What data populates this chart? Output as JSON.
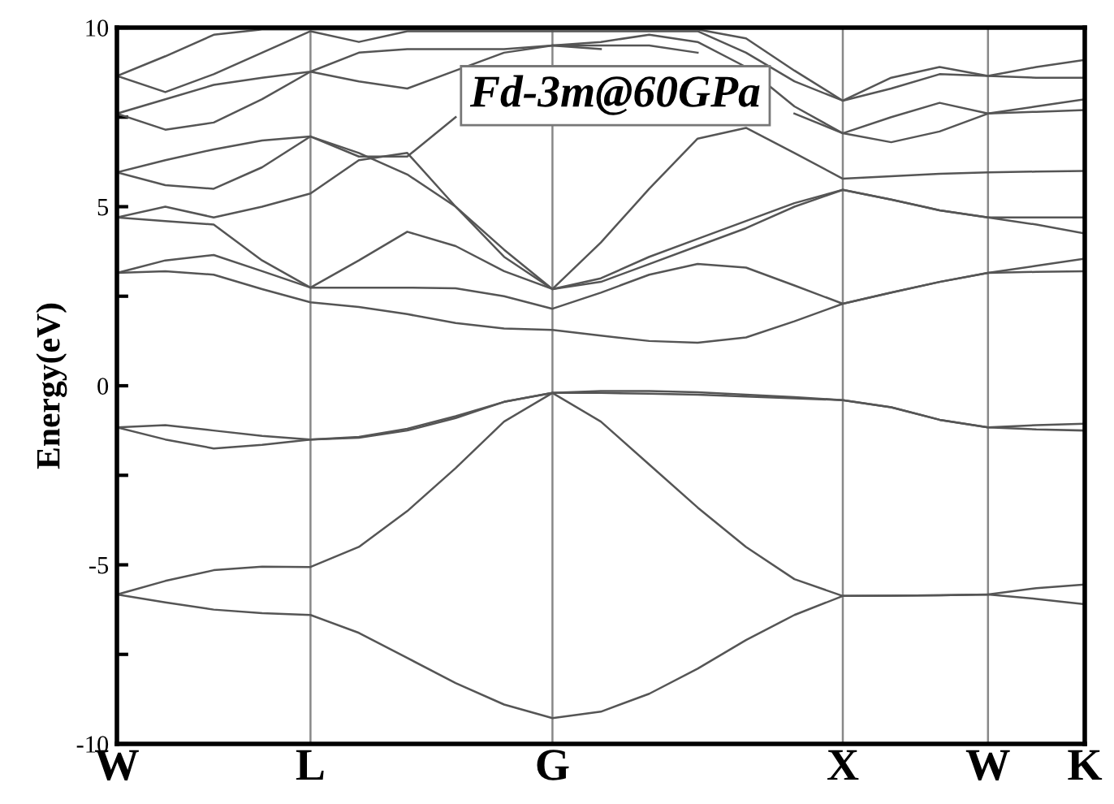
{
  "chart_data": {
    "type": "line",
    "ylabel": "Energy(eV)",
    "annotations": [
      "Fd-3m@60GPa"
    ],
    "categories": [
      "W",
      null,
      null,
      null,
      "L",
      null,
      null,
      null,
      null,
      "G",
      null,
      null,
      null,
      null,
      null,
      "X",
      null,
      null,
      "W",
      null,
      "K"
    ],
    "ylim": [
      -10,
      10
    ],
    "yticks": [
      -10,
      {
        "value": -7.5,
        "label": null
      },
      -5,
      {
        "value": -2.5,
        "label": null
      },
      0,
      {
        "value": 2.5,
        "label": null
      },
      5,
      {
        "value": 7.5,
        "label": null
      },
      10
    ],
    "grid": "x",
    "marker": "none",
    "line_style": "solid",
    "series": [
      {
        "color": "#555555",
        "values": [
          -5.83,
          -6.05,
          -6.25,
          -6.35,
          -6.4,
          -6.9,
          -7.6,
          -8.3,
          -8.9,
          -9.28,
          -9.1,
          -8.6,
          -7.9,
          -7.1,
          -6.4,
          -5.87,
          -5.86,
          -5.85,
          -5.83,
          -5.95,
          -6.1
        ]
      },
      {
        "color": "#555555",
        "values": [
          -5.83,
          -5.45,
          -5.15,
          -5.05,
          -5.06,
          -4.5,
          -3.5,
          -2.3,
          -1.0,
          -0.2,
          -1.0,
          -2.2,
          -3.4,
          -4.5,
          -5.4,
          -5.87,
          -5.86,
          -5.85,
          -5.83,
          -5.65,
          -5.55
        ]
      },
      {
        "color": "#555555",
        "values": [
          -1.16,
          -1.5,
          -1.75,
          -1.65,
          -1.5,
          -1.45,
          -1.25,
          -0.9,
          -0.45,
          -0.2,
          -0.2,
          -0.22,
          -0.25,
          -0.3,
          -0.35,
          -0.4,
          -0.6,
          -0.95,
          -1.16,
          -1.22,
          -1.25
        ]
      },
      {
        "color": "#555555",
        "values": [
          -1.16,
          -1.1,
          -1.25,
          -1.4,
          -1.5,
          -1.43,
          -1.2,
          -0.85,
          -0.45,
          -0.2,
          -0.15,
          -0.15,
          -0.18,
          -0.25,
          -0.32,
          -0.4,
          -0.6,
          -0.95,
          -1.16,
          -1.1,
          -1.06
        ]
      },
      {
        "color": "#555555",
        "values": [
          3.15,
          3.2,
          3.1,
          2.7,
          2.33,
          2.2,
          2.0,
          1.75,
          1.6,
          1.56,
          1.4,
          1.25,
          1.2,
          1.35,
          1.8,
          2.29,
          2.6,
          2.9,
          3.15,
          3.18,
          3.2
        ]
      },
      {
        "color": "#555555",
        "values": [
          3.15,
          3.5,
          3.65,
          3.2,
          2.74,
          2.74,
          2.74,
          2.72,
          2.5,
          2.15,
          2.6,
          3.1,
          3.4,
          3.3,
          2.8,
          2.29,
          2.6,
          2.9,
          3.15,
          3.35,
          3.55
        ]
      },
      {
        "color": "#555555",
        "values": [
          4.7,
          4.6,
          4.5,
          3.5,
          2.74,
          3.5,
          4.3,
          3.9,
          3.2,
          2.7,
          2.9,
          3.4,
          3.9,
          4.4,
          5.0,
          5.47,
          5.2,
          4.9,
          4.7,
          4.5,
          4.25
        ]
      },
      {
        "color": "#555555",
        "values": [
          4.7,
          5.0,
          4.7,
          5.0,
          5.37,
          6.3,
          6.5,
          5.0,
          3.6,
          2.7,
          3.0,
          3.6,
          4.1,
          4.6,
          5.1,
          5.47,
          5.2,
          4.9,
          4.7,
          4.7,
          4.7
        ]
      },
      {
        "color": "#555555",
        "values": [
          5.96,
          5.6,
          5.5,
          6.1,
          6.96,
          6.5,
          5.9,
          5.0,
          3.8,
          2.7,
          4.0,
          5.5,
          6.9,
          7.2,
          6.5,
          5.78,
          5.85,
          5.92,
          5.96,
          5.98,
          6.0
        ]
      },
      {
        "color": "#555555",
        "values": [
          5.96,
          6.3,
          6.6,
          6.85,
          6.96,
          6.4,
          6.4,
          7.5,
          null,
          9.5,
          9.4,
          null,
          null,
          null,
          null,
          null,
          null,
          null,
          null,
          null,
          null
        ]
      },
      {
        "color": "#555555",
        "values": [
          7.6,
          7.15,
          7.35,
          8.0,
          8.77,
          8.5,
          8.3,
          8.8,
          9.3,
          9.5,
          9.5,
          9.5,
          9.3,
          null,
          7.6,
          7.05,
          6.8,
          7.1,
          7.6,
          7.65,
          7.7
        ]
      },
      {
        "color": "#555555",
        "values": [
          7.6,
          8.0,
          8.4,
          8.6,
          8.77,
          9.3,
          9.4,
          9.4,
          9.4,
          9.5,
          9.6,
          9.8,
          9.6,
          8.9,
          7.8,
          7.05,
          7.5,
          7.9,
          7.6,
          7.8,
          8.0
        ]
      },
      {
        "color": "#555555",
        "values": [
          8.65,
          8.2,
          8.7,
          9.3,
          9.9,
          9.6,
          9.9,
          9.9,
          9.9,
          9.9,
          9.9,
          9.9,
          9.9,
          9.3,
          8.5,
          7.96,
          8.6,
          8.9,
          8.65,
          8.6,
          8.6
        ]
      },
      {
        "color": "#555555",
        "values": [
          8.65,
          9.2,
          9.8,
          9.95,
          9.95,
          9.95,
          9.95,
          9.95,
          9.95,
          9.95,
          9.95,
          9.95,
          9.95,
          9.7,
          8.8,
          7.96,
          8.3,
          8.7,
          8.65,
          8.9,
          9.1
        ]
      }
    ]
  }
}
